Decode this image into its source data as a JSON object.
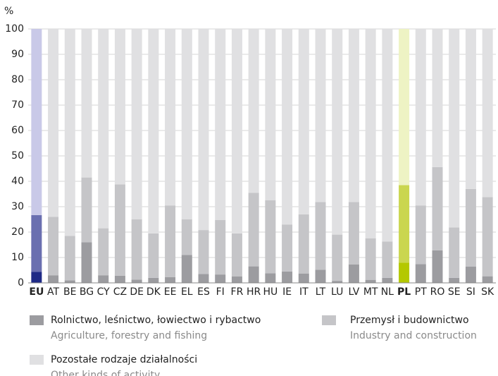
{
  "chart_data": {
    "type": "stacked_bar",
    "y_label": "%",
    "categories": [
      "EU",
      "AT",
      "BE",
      "BG",
      "CY",
      "CZ",
      "DE",
      "DK",
      "EE",
      "EL",
      "ES",
      "FI",
      "FR",
      "HR",
      "HU",
      "IE",
      "IT",
      "LT",
      "LU",
      "LV",
      "MT",
      "NL",
      "PL",
      "PT",
      "RO",
      "SE",
      "SI",
      "SK"
    ],
    "series": [
      {
        "name": "Rolnictwo, leśnictwo, łowiectwo i rybactwo",
        "name_en": "Agriculture, forestry and fishing",
        "color": "#9c9ca0",
        "values": [
          4.3,
          3,
          1,
          16,
          3,
          2.8,
          1.3,
          2,
          2.3,
          11,
          3.5,
          3.3,
          2.5,
          6.5,
          3.8,
          4.5,
          3.7,
          5.2,
          0.8,
          7.3,
          1.2,
          2,
          8,
          7.4,
          12.8,
          2,
          6.4,
          2.6
        ]
      },
      {
        "name": "Przemysł i budownictwo",
        "name_en": "Industry and construction",
        "color": "#c5c5c8",
        "values": [
          22.4,
          23,
          17.5,
          25.5,
          18.5,
          36,
          23.7,
          17.5,
          28.2,
          14,
          17.3,
          21.5,
          17,
          29,
          28.7,
          18.5,
          23.3,
          26.6,
          18.2,
          24.5,
          16.3,
          14.3,
          30.5,
          23.1,
          32.8,
          19.8,
          30.6,
          31.2
        ]
      },
      {
        "name": "Pozostałe rodzaje działalności",
        "name_en": "Other kinds of activity",
        "color": "#e0e0e2",
        "values": [
          73.3,
          74,
          81.5,
          58.5,
          78.5,
          61.2,
          75,
          80.5,
          69.5,
          75,
          79.2,
          75.2,
          80.5,
          64.5,
          67.5,
          77,
          73,
          68.2,
          81,
          68.2,
          82.5,
          83.7,
          61.5,
          69.5,
          54.4,
          78.2,
          63,
          66.2
        ]
      }
    ],
    "highlight_colors": {
      "EU": [
        "#1f2a86",
        "#6a6fb0",
        "#c9c9e8"
      ],
      "PL": [
        "#b4c800",
        "#cad64f",
        "#eef3c4"
      ]
    },
    "ylim": [
      0,
      100
    ],
    "yticks": [
      0,
      10,
      20,
      30,
      40,
      50,
      60,
      70,
      80,
      90,
      100
    ],
    "grid": true
  }
}
